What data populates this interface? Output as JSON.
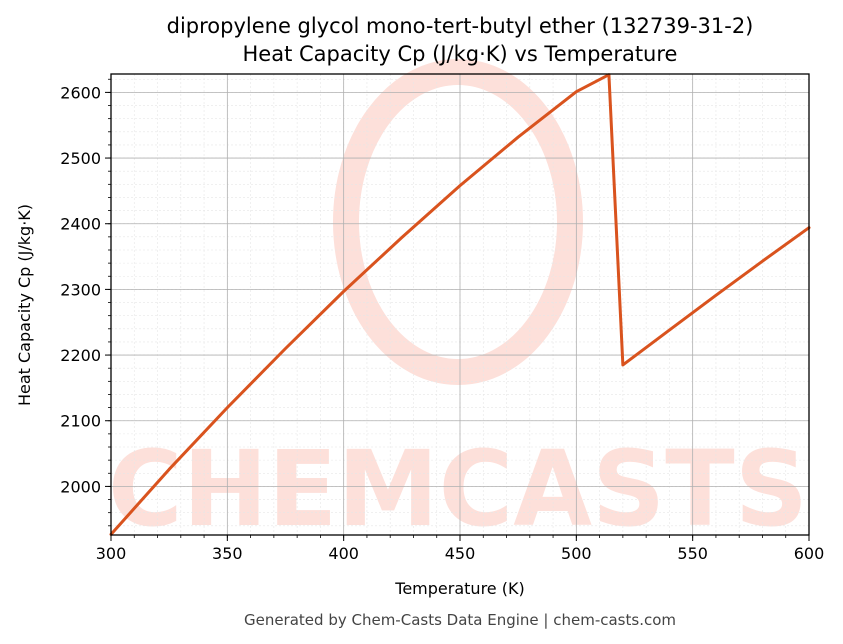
{
  "chart_data": {
    "type": "line",
    "title": "dipropylene glycol mono-tert-butyl ether (132739-31-2)",
    "subtitle": "Heat Capacity Cp (J/kg·K) vs Temperature",
    "xlabel": "Temperature (K)",
    "ylabel": "Heat Capacity Cp (J/kg·K)",
    "xlim": [
      300,
      600
    ],
    "ylim": [
      1926,
      2628
    ],
    "xticks": [
      300,
      350,
      400,
      450,
      500,
      550,
      600
    ],
    "yticks": [
      2000,
      2100,
      2200,
      2300,
      2400,
      2500,
      2600
    ],
    "grid": true,
    "line_color": "#d9531e",
    "series": [
      {
        "x": [
          300,
          325,
          350,
          375,
          400,
          425,
          450,
          475,
          500,
          514,
          520,
          540,
          560,
          580,
          600
        ],
        "values": [
          1927,
          2026,
          2120,
          2210,
          2297,
          2379,
          2458,
          2532,
          2601,
          2627,
          2185,
          2238,
          2291,
          2343,
          2394
        ]
      }
    ]
  },
  "watermark": "CHEMCASTS",
  "footer": "Generated by Chem-Casts Data Engine | chem-casts.com"
}
